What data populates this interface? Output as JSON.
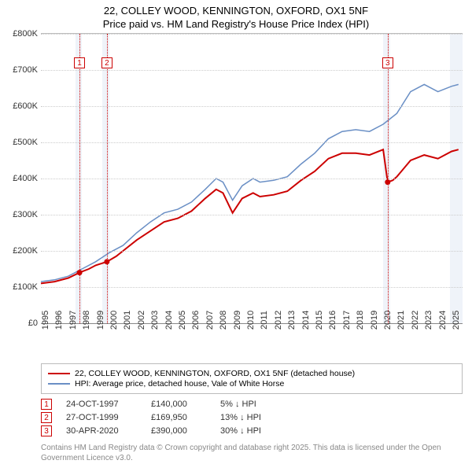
{
  "title": {
    "line1": "22, COLLEY WOOD, KENNINGTON, OXFORD, OX1 5NF",
    "line2": "Price paid vs. HM Land Registry's House Price Index (HPI)"
  },
  "chart": {
    "type": "line",
    "ylim": [
      0,
      800000
    ],
    "ytick_step": 100000,
    "yticks": [
      "£0",
      "£100K",
      "£200K",
      "£300K",
      "£400K",
      "£500K",
      "£600K",
      "£700K",
      "£800K"
    ],
    "xrange": [
      1995,
      2025.8
    ],
    "xticks": [
      1995,
      1996,
      1997,
      1998,
      1999,
      2000,
      2001,
      2002,
      2003,
      2004,
      2005,
      2006,
      2007,
      2008,
      2009,
      2010,
      2011,
      2012,
      2013,
      2014,
      2015,
      2016,
      2017,
      2018,
      2019,
      2020,
      2021,
      2022,
      2023,
      2024,
      2025
    ],
    "background_color": "#ffffff",
    "grid_color": "#cccccc",
    "bands": [
      {
        "from": 1997.5,
        "to": 1998.0,
        "color": "#e8eef6"
      },
      {
        "from": 1999.5,
        "to": 2000.0,
        "color": "#e8eef6"
      },
      {
        "from": 2020.0,
        "to": 2020.5,
        "color": "#e8eef6"
      },
      {
        "from": 2024.9,
        "to": 2025.8,
        "color": "#e8eef6"
      }
    ],
    "series": [
      {
        "name": "price_paid",
        "label": "22, COLLEY WOOD, KENNINGTON, OXFORD, OX1 5NF (detached house)",
        "color": "#cc0000",
        "line_width": 2,
        "points": [
          [
            1995.0,
            110000
          ],
          [
            1996.0,
            115000
          ],
          [
            1997.0,
            125000
          ],
          [
            1997.82,
            140000
          ],
          [
            1998.5,
            150000
          ],
          [
            1999.0,
            160000
          ],
          [
            1999.82,
            169950
          ],
          [
            2000.5,
            185000
          ],
          [
            2001.0,
            200000
          ],
          [
            2002.0,
            230000
          ],
          [
            2003.0,
            255000
          ],
          [
            2004.0,
            280000
          ],
          [
            2005.0,
            290000
          ],
          [
            2006.0,
            310000
          ],
          [
            2007.0,
            345000
          ],
          [
            2007.8,
            370000
          ],
          [
            2008.3,
            360000
          ],
          [
            2009.0,
            305000
          ],
          [
            2009.7,
            345000
          ],
          [
            2010.5,
            360000
          ],
          [
            2011.0,
            350000
          ],
          [
            2012.0,
            355000
          ],
          [
            2013.0,
            365000
          ],
          [
            2014.0,
            395000
          ],
          [
            2015.0,
            420000
          ],
          [
            2016.0,
            455000
          ],
          [
            2017.0,
            470000
          ],
          [
            2018.0,
            470000
          ],
          [
            2019.0,
            465000
          ],
          [
            2020.0,
            480000
          ],
          [
            2020.33,
            390000
          ],
          [
            2020.7,
            395000
          ],
          [
            2021.0,
            405000
          ],
          [
            2022.0,
            450000
          ],
          [
            2023.0,
            465000
          ],
          [
            2024.0,
            455000
          ],
          [
            2025.0,
            475000
          ],
          [
            2025.5,
            480000
          ]
        ]
      },
      {
        "name": "hpi",
        "label": "HPI: Average price, detached house, Vale of White Horse",
        "color": "#6a8fc5",
        "line_width": 1.5,
        "points": [
          [
            1995.0,
            115000
          ],
          [
            1996.0,
            120000
          ],
          [
            1997.0,
            130000
          ],
          [
            1998.0,
            150000
          ],
          [
            1999.0,
            170000
          ],
          [
            2000.0,
            195000
          ],
          [
            2001.0,
            215000
          ],
          [
            2002.0,
            250000
          ],
          [
            2003.0,
            280000
          ],
          [
            2004.0,
            305000
          ],
          [
            2005.0,
            315000
          ],
          [
            2006.0,
            335000
          ],
          [
            2007.0,
            370000
          ],
          [
            2007.8,
            400000
          ],
          [
            2008.3,
            390000
          ],
          [
            2009.0,
            340000
          ],
          [
            2009.7,
            380000
          ],
          [
            2010.5,
            400000
          ],
          [
            2011.0,
            390000
          ],
          [
            2012.0,
            395000
          ],
          [
            2013.0,
            405000
          ],
          [
            2014.0,
            440000
          ],
          [
            2015.0,
            470000
          ],
          [
            2016.0,
            510000
          ],
          [
            2017.0,
            530000
          ],
          [
            2018.0,
            535000
          ],
          [
            2019.0,
            530000
          ],
          [
            2020.0,
            550000
          ],
          [
            2021.0,
            580000
          ],
          [
            2022.0,
            640000
          ],
          [
            2023.0,
            660000
          ],
          [
            2024.0,
            640000
          ],
          [
            2025.0,
            655000
          ],
          [
            2025.5,
            660000
          ]
        ]
      }
    ],
    "markers": [
      {
        "idx": "1",
        "x": 1997.82,
        "y": 140000
      },
      {
        "idx": "2",
        "x": 1999.82,
        "y": 169950
      },
      {
        "idx": "3",
        "x": 2020.33,
        "y": 390000
      }
    ]
  },
  "legend": [
    {
      "color": "#cc0000",
      "label": "22, COLLEY WOOD, KENNINGTON, OXFORD, OX1 5NF (detached house)"
    },
    {
      "color": "#6a8fc5",
      "label": "HPI: Average price, detached house, Vale of White Horse"
    }
  ],
  "sales": [
    {
      "idx": "1",
      "date": "24-OCT-1997",
      "price": "£140,000",
      "diff": "5% ↓ HPI"
    },
    {
      "idx": "2",
      "date": "27-OCT-1999",
      "price": "£169,950",
      "diff": "13% ↓ HPI"
    },
    {
      "idx": "3",
      "date": "30-APR-2020",
      "price": "£390,000",
      "diff": "30% ↓ HPI"
    }
  ],
  "footnote": "Contains HM Land Registry data © Crown copyright and database right 2025. This data is licensed under the Open Government Licence v3.0."
}
